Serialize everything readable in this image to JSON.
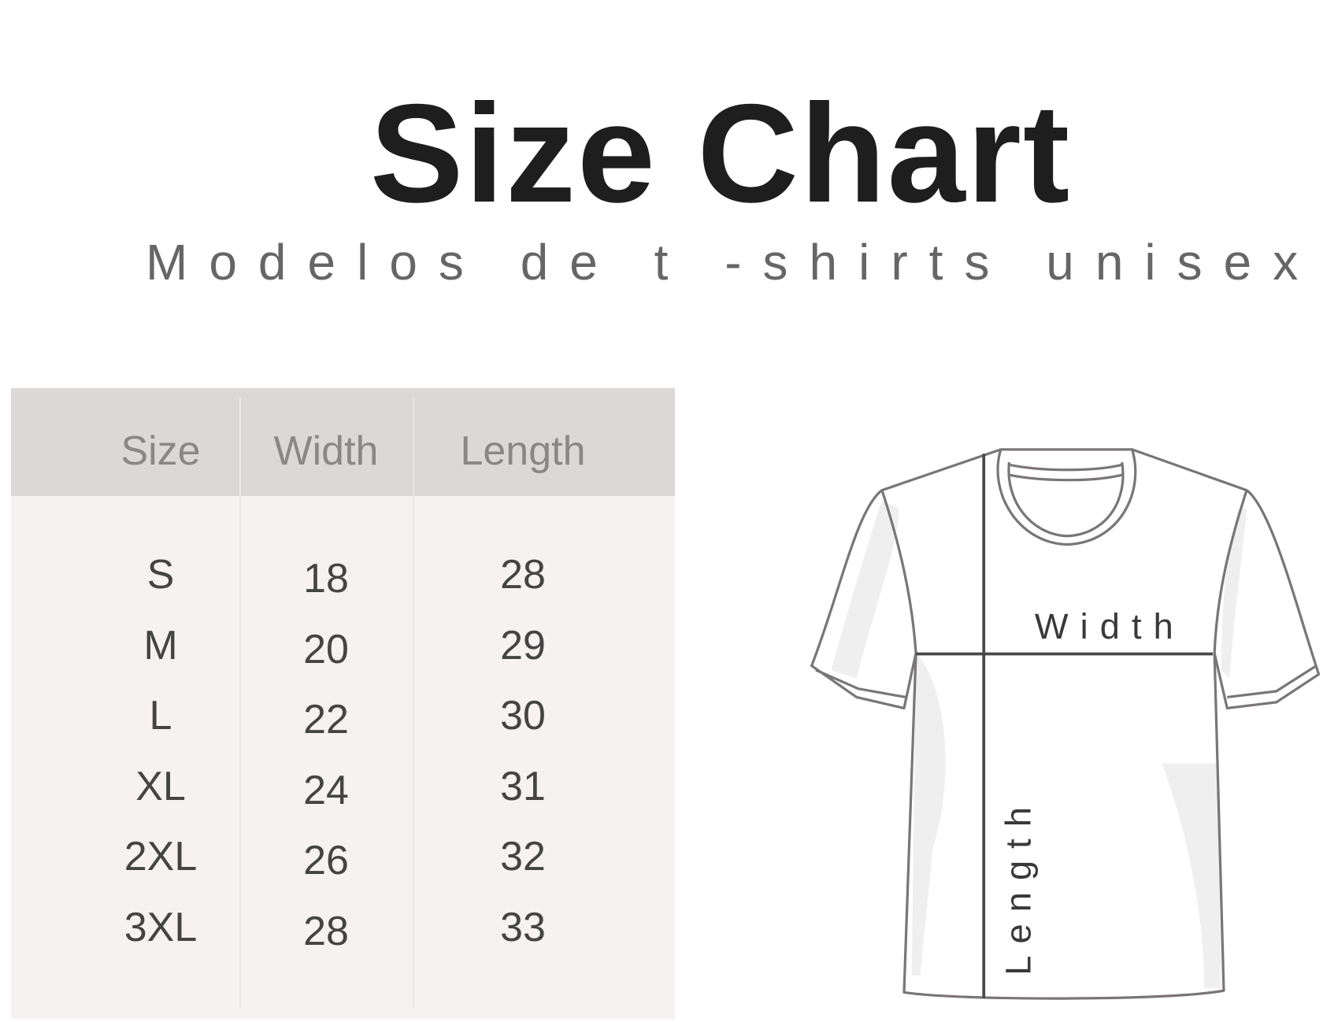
{
  "chart_data": {
    "type": "table",
    "title": "Size Chart",
    "subtitle": "Modelos de t -shirts unisex",
    "columns": [
      "Size",
      "Width",
      "Length"
    ],
    "rows": [
      [
        "S",
        "18",
        "28"
      ],
      [
        "M",
        "20",
        "29"
      ],
      [
        "L",
        "22",
        "30"
      ],
      [
        "XL",
        "24",
        "31"
      ],
      [
        "2XL",
        "26",
        "32"
      ],
      [
        "3XL",
        "28",
        "33"
      ]
    ],
    "diagram_labels": {
      "width": "Width",
      "length": "Length"
    }
  },
  "colors": {
    "header_bg": "#dcd8d8",
    "body_bg": "#f6f2f2",
    "header_text": "#8a8787",
    "body_text": "#444444",
    "outline": "#7a7676"
  }
}
